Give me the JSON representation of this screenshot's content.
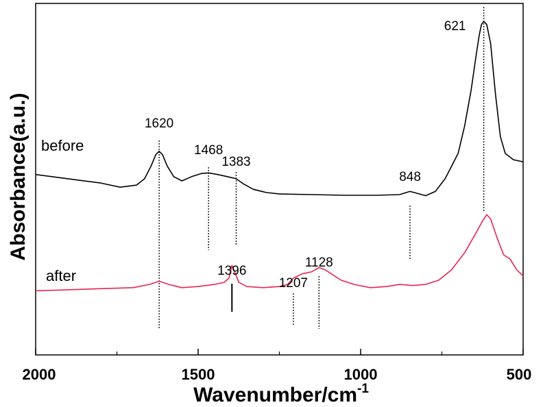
{
  "chart_data": {
    "type": "line",
    "title": "",
    "xlabel": "Wavenumber/cm",
    "xlabel_superscript": "-1",
    "ylabel": "Absorbance(a.u.)",
    "xlim": [
      2000,
      500
    ],
    "x_reversed": true,
    "xticks": [
      2000,
      1500,
      1000,
      500
    ],
    "xtick_labels": [
      "2000",
      "1500",
      "1000",
      "500"
    ],
    "yticks": [],
    "grid": false,
    "legend": "none",
    "series": [
      {
        "name": "before",
        "color": "#000000",
        "points": [
          [
            2000,
            0.62
          ],
          [
            1900,
            0.6
          ],
          [
            1800,
            0.58
          ],
          [
            1740,
            0.56
          ],
          [
            1690,
            0.57
          ],
          [
            1665,
            0.6
          ],
          [
            1645,
            0.66
          ],
          [
            1630,
            0.715
          ],
          [
            1620,
            0.73
          ],
          [
            1610,
            0.715
          ],
          [
            1595,
            0.66
          ],
          [
            1575,
            0.61
          ],
          [
            1550,
            0.59
          ],
          [
            1520,
            0.61
          ],
          [
            1490,
            0.625
          ],
          [
            1468,
            0.628
          ],
          [
            1440,
            0.62
          ],
          [
            1410,
            0.61
          ],
          [
            1383,
            0.6
          ],
          [
            1360,
            0.575
          ],
          [
            1330,
            0.55
          ],
          [
            1290,
            0.535
          ],
          [
            1250,
            0.528
          ],
          [
            1150,
            0.525
          ],
          [
            1050,
            0.522
          ],
          [
            950,
            0.522
          ],
          [
            880,
            0.525
          ],
          [
            860,
            0.535
          ],
          [
            848,
            0.54
          ],
          [
            835,
            0.535
          ],
          [
            800,
            0.52
          ],
          [
            770,
            0.54
          ],
          [
            740,
            0.6
          ],
          [
            700,
            0.72
          ],
          [
            680,
            0.85
          ],
          [
            660,
            1.02
          ],
          [
            645,
            1.18
          ],
          [
            635,
            1.28
          ],
          [
            628,
            1.33
          ],
          [
            621,
            1.345
          ],
          [
            612,
            1.33
          ],
          [
            600,
            1.24
          ],
          [
            585,
            1.0
          ],
          [
            570,
            0.8
          ],
          [
            555,
            0.72
          ],
          [
            530,
            0.69
          ],
          [
            500,
            0.68
          ]
        ]
      },
      {
        "name": "after",
        "color": "#e8254f",
        "points": [
          [
            2000,
            0.07
          ],
          [
            1900,
            0.075
          ],
          [
            1800,
            0.08
          ],
          [
            1700,
            0.085
          ],
          [
            1650,
            0.1
          ],
          [
            1620,
            0.115
          ],
          [
            1590,
            0.1
          ],
          [
            1550,
            0.085
          ],
          [
            1500,
            0.09
          ],
          [
            1450,
            0.1
          ],
          [
            1420,
            0.11
          ],
          [
            1405,
            0.13
          ],
          [
            1396,
            0.19
          ],
          [
            1385,
            0.15
          ],
          [
            1375,
            0.11
          ],
          [
            1350,
            0.09
          ],
          [
            1300,
            0.085
          ],
          [
            1250,
            0.09
          ],
          [
            1225,
            0.1
          ],
          [
            1207,
            0.13
          ],
          [
            1180,
            0.15
          ],
          [
            1150,
            0.16
          ],
          [
            1128,
            0.18
          ],
          [
            1110,
            0.17
          ],
          [
            1090,
            0.15
          ],
          [
            1060,
            0.12
          ],
          [
            1020,
            0.1
          ],
          [
            970,
            0.085
          ],
          [
            920,
            0.09
          ],
          [
            880,
            0.1
          ],
          [
            840,
            0.095
          ],
          [
            800,
            0.1
          ],
          [
            760,
            0.12
          ],
          [
            720,
            0.17
          ],
          [
            680,
            0.25
          ],
          [
            650,
            0.33
          ],
          [
            625,
            0.4
          ],
          [
            612,
            0.43
          ],
          [
            600,
            0.41
          ],
          [
            580,
            0.32
          ],
          [
            560,
            0.24
          ],
          [
            540,
            0.22
          ],
          [
            520,
            0.17
          ],
          [
            500,
            0.14
          ]
        ]
      }
    ],
    "series_labels": [
      {
        "text": "before",
        "position": "left, beside before curve"
      },
      {
        "text": "after",
        "position": "left, beside after curve"
      }
    ],
    "annotations": [
      {
        "text": "1620",
        "x": 1620,
        "style": "dotted"
      },
      {
        "text": "1468",
        "x": 1468,
        "style": "dotted"
      },
      {
        "text": "1383",
        "x": 1383,
        "style": "dotted"
      },
      {
        "text": "848",
        "x": 848,
        "style": "dotted"
      },
      {
        "text": "621",
        "x": 621,
        "style": "dotted"
      },
      {
        "text": "1396",
        "x": 1396,
        "style": "solid"
      },
      {
        "text": "1207",
        "x": 1207,
        "style": "dotted"
      },
      {
        "text": "1128",
        "x": 1128,
        "style": "dotted"
      }
    ]
  }
}
